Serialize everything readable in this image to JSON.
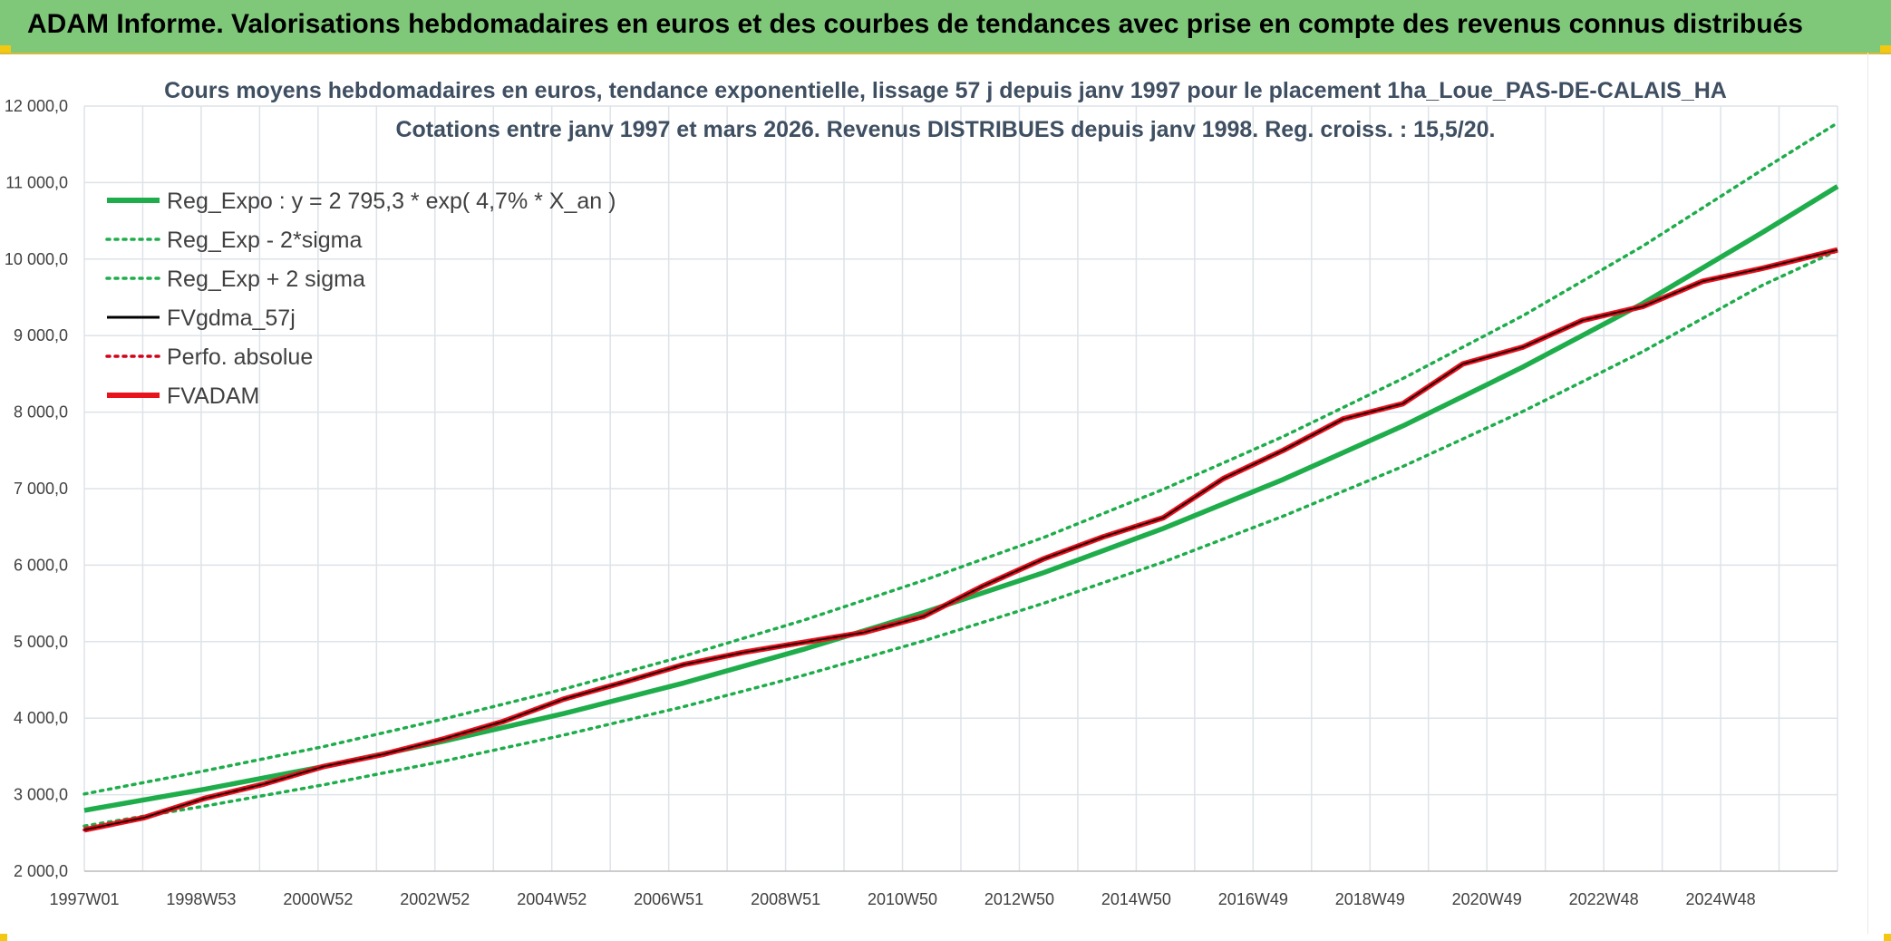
{
  "window": {
    "title": "ADAM Informe. Valorisations hebdomadaires en euros et des courbes de tendances avec prise en compte des revenus connus distribués"
  },
  "colors": {
    "banner": "#7fc87a",
    "reg_expo": "#1fad4c",
    "fvgdma": "#000000",
    "perfo": "#d0021b",
    "fvadam": "#e8141c",
    "grid": "#dde3e8"
  },
  "chart_data": {
    "type": "line",
    "title": "Cours moyens hebdomadaires en euros, tendance exponentielle, lissage 57 j depuis janv 1997 pour le placement 1ha_Loue_PAS-DE-CALAIS_HA",
    "subtitle": "Cotations entre janv 1997 et mars 2026. Revenus DISTRIBUES depuis janv 1998. Reg. croiss. : 15,5/20.",
    "xlabel": "",
    "ylabel": "",
    "ylim": [
      2000,
      12000
    ],
    "xlim": [
      1997.0,
      2026.25
    ],
    "grid": true,
    "legend_position": "top-left",
    "x_tick_labels": [
      "1997W01",
      "1998W53",
      "2000W52",
      "2002W52",
      "2004W52",
      "2006W51",
      "2008W51",
      "2010W50",
      "2012W50",
      "2014W50",
      "2016W49",
      "2018W49",
      "2020W49",
      "2022W48",
      "2024W48"
    ],
    "y_tick_labels": [
      "2 000,0",
      "3 000,0",
      "4 000,0",
      "5 000,0",
      "6 000,0",
      "7 000,0",
      "8 000,0",
      "9 000,0",
      "10 000,0",
      "11 000,0",
      "12 000,0"
    ],
    "y_tick_values": [
      2000,
      3000,
      4000,
      5000,
      6000,
      7000,
      8000,
      9000,
      10000,
      11000,
      12000
    ],
    "series": [
      {
        "name": "Reg_Expo : y = 2 795,3 * exp( 4,7% *  X_an )",
        "style": "solid-thick",
        "color": "#1fad4c",
        "x": [
          1997,
          1999,
          2001,
          2003,
          2005,
          2007,
          2009,
          2011,
          2013,
          2015,
          2017,
          2019,
          2021,
          2023,
          2025,
          2026.25
        ],
        "y": [
          2795,
          3070,
          3370,
          3700,
          4060,
          4460,
          4900,
          5380,
          5900,
          6480,
          7120,
          7820,
          8590,
          9420,
          10350,
          10950
        ]
      },
      {
        "name": "Reg_Exp - 2*sigma",
        "style": "dotted",
        "color": "#1fad4c",
        "x": [
          1997,
          1999,
          2001,
          2003,
          2005,
          2007,
          2009,
          2011,
          2013,
          2015,
          2017,
          2019,
          2021,
          2023,
          2025,
          2026.25
        ],
        "y": [
          2590,
          2850,
          3130,
          3440,
          3780,
          4150,
          4560,
          5010,
          5500,
          6040,
          6640,
          7290,
          8010,
          8790,
          9660,
          10110
        ]
      },
      {
        "name": "Reg_Exp + 2 sigma",
        "style": "dotted",
        "color": "#1fad4c",
        "x": [
          1997,
          1999,
          2001,
          2003,
          2005,
          2007,
          2009,
          2011,
          2013,
          2015,
          2017,
          2019,
          2021,
          2023,
          2025,
          2026.25
        ],
        "y": [
          3010,
          3310,
          3630,
          3990,
          4380,
          4810,
          5280,
          5800,
          6360,
          6990,
          7680,
          8440,
          9260,
          10170,
          11170,
          11780
        ]
      },
      {
        "name": "FVgdma_57j",
        "style": "solid",
        "color": "#000000",
        "x": [
          1997,
          1998,
          1999,
          2000,
          2001,
          2002,
          2003,
          2004,
          2005,
          2006,
          2007,
          2008,
          2009,
          2010,
          2011,
          2012,
          2013,
          2014,
          2015,
          2016,
          2017,
          2018,
          2019,
          2020,
          2021,
          2022,
          2023,
          2024,
          2025,
          2026.25
        ],
        "y": [
          2540,
          2700,
          2950,
          3140,
          3370,
          3530,
          3730,
          3960,
          4250,
          4470,
          4700,
          4860,
          4990,
          5120,
          5330,
          5730,
          6080,
          6370,
          6620,
          7130,
          7500,
          7910,
          8110,
          8630,
          8850,
          9200,
          9380,
          9710,
          9880,
          10120
        ]
      },
      {
        "name": "Perfo. absolue",
        "style": "dotted",
        "color": "#d0021b",
        "x": [
          1997,
          1998,
          1999,
          2000,
          2001,
          2002,
          2003,
          2004,
          2005,
          2006,
          2007,
          2008,
          2009,
          2010,
          2011,
          2012,
          2013,
          2014,
          2015,
          2016,
          2017,
          2018,
          2019,
          2020,
          2021,
          2022,
          2023,
          2024,
          2025,
          2026.25
        ],
        "y": [
          2540,
          2700,
          2950,
          3140,
          3370,
          3530,
          3730,
          3960,
          4250,
          4470,
          4700,
          4860,
          4990,
          5120,
          5330,
          5730,
          6080,
          6370,
          6620,
          7130,
          7500,
          7910,
          8110,
          8630,
          8850,
          9200,
          9380,
          9710,
          9880,
          10120
        ]
      },
      {
        "name": "FVADAM",
        "style": "solid-thick",
        "color": "#e8141c",
        "x": [
          1997,
          1998,
          1999,
          2000,
          2001,
          2002,
          2003,
          2004,
          2005,
          2006,
          2007,
          2008,
          2009,
          2010,
          2011,
          2012,
          2013,
          2014,
          2015,
          2016,
          2017,
          2018,
          2019,
          2020,
          2021,
          2022,
          2023,
          2024,
          2025,
          2026.25
        ],
        "y": [
          2540,
          2700,
          2950,
          3140,
          3370,
          3530,
          3730,
          3960,
          4250,
          4470,
          4700,
          4860,
          4990,
          5120,
          5330,
          5730,
          6080,
          6370,
          6620,
          7130,
          7500,
          7910,
          8110,
          8630,
          8850,
          9200,
          9380,
          9710,
          9880,
          10120
        ]
      }
    ]
  }
}
